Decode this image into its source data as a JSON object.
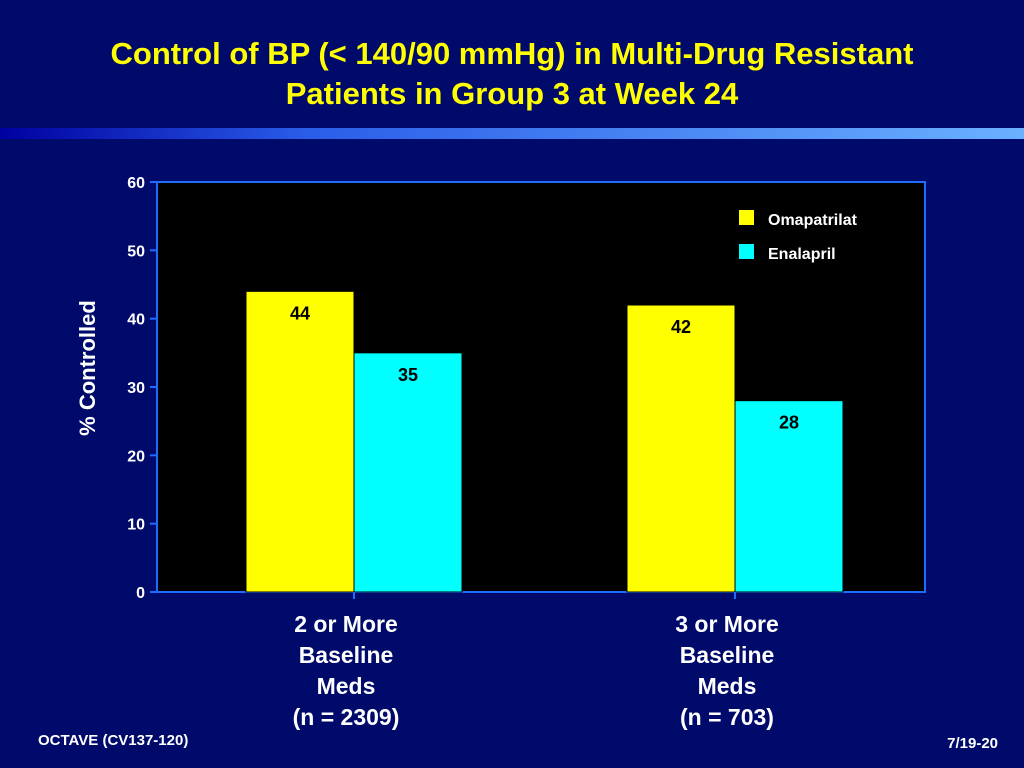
{
  "slide": {
    "title_line1": "Control of BP (< 140/90 mmHg) in Multi-Drug Resistant",
    "title_line2": "Patients in Group 3 at Week 24",
    "footer_left": "OCTAVE (CV137-120)",
    "footer_right": "7/19-20"
  },
  "colors": {
    "background": "#000a6b",
    "title": "#ffff00",
    "plot_area": "#000000",
    "axis": "#1e6bff"
  },
  "chart_data": {
    "type": "bar",
    "title": "",
    "xlabel": "",
    "ylabel": "% Controlled",
    "ylim": [
      0,
      60
    ],
    "yticks": [
      0,
      10,
      20,
      30,
      40,
      50,
      60
    ],
    "grid": false,
    "legend_position": "top-right",
    "categories": [
      [
        "2 or More",
        "Baseline",
        "Meds",
        "(n = 2309)"
      ],
      [
        "3 or More",
        "Baseline",
        "Meds",
        "(n = 703)"
      ]
    ],
    "series": [
      {
        "name": "Omapatrilat",
        "color": "#ffff00",
        "values": [
          44,
          42
        ]
      },
      {
        "name": "Enalapril",
        "color": "#00ffff",
        "values": [
          35,
          28
        ]
      }
    ]
  }
}
